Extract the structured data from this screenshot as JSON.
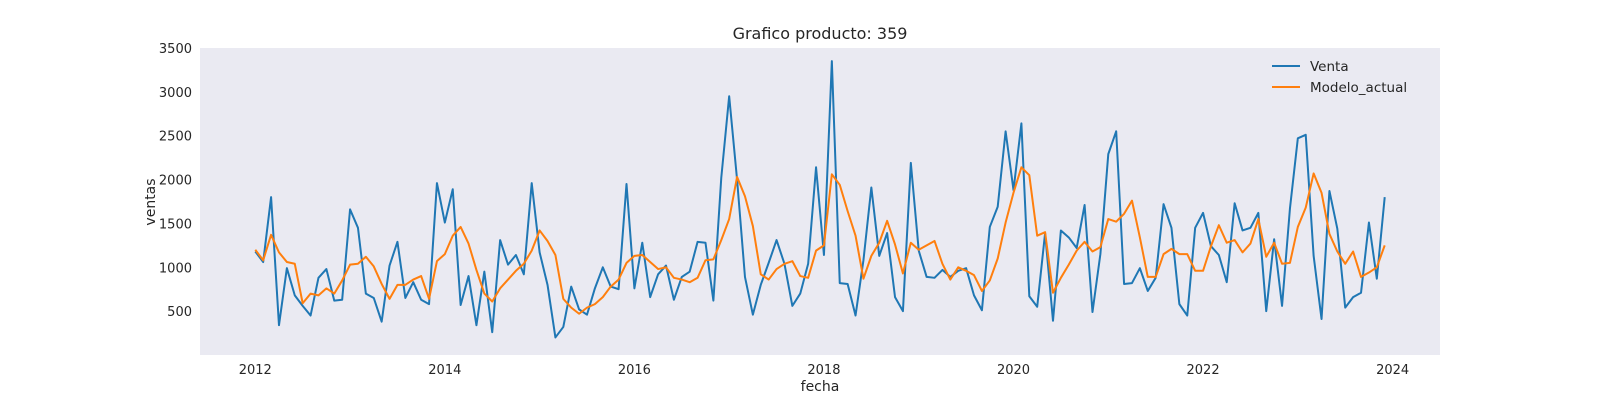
{
  "chart_data": {
    "type": "line",
    "title": "Grafico producto: 359",
    "xlabel": "fecha",
    "ylabel": "ventas",
    "x_start": "2012-01",
    "x_frequency": "monthly",
    "xlim": [
      "2011-06",
      "2024-07"
    ],
    "ylim": [
      0,
      3500
    ],
    "xticks": [
      "2012",
      "2014",
      "2016",
      "2018",
      "2020",
      "2022",
      "2024"
    ],
    "yticks": [
      500,
      1000,
      1500,
      2000,
      2500,
      3000,
      3500
    ],
    "grid": false,
    "legend_position": "top-right",
    "background": "#eaeaf2",
    "series": [
      {
        "name": "Venta",
        "color": "#1f77b4",
        "values": [
          1180,
          1060,
          1800,
          340,
          990,
          680,
          560,
          450,
          880,
          980,
          620,
          630,
          1660,
          1450,
          700,
          650,
          380,
          1020,
          1290,
          650,
          830,
          630,
          580,
          1960,
          1510,
          1890,
          570,
          900,
          340,
          950,
          260,
          1310,
          1030,
          1140,
          920,
          1960,
          1170,
          800,
          200,
          320,
          780,
          520,
          460,
          760,
          1000,
          780,
          750,
          1950,
          760,
          1280,
          660,
          920,
          1020,
          630,
          890,
          950,
          1290,
          1280,
          620,
          2020,
          2950,
          2000,
          890,
          460,
          800,
          1050,
          1310,
          1040,
          560,
          700,
          1040,
          2140,
          1140,
          3350,
          820,
          810,
          450,
          1080,
          1910,
          1130,
          1390,
          660,
          500,
          2190,
          1190,
          890,
          880,
          970,
          890,
          960,
          990,
          680,
          510,
          1460,
          1690,
          2550,
          1880,
          2640,
          670,
          550,
          1390,
          390,
          1420,
          1340,
          1220,
          1710,
          490,
          1150,
          2290,
          2550,
          810,
          820,
          990,
          730,
          880,
          1720,
          1450,
          580,
          450,
          1450,
          1620,
          1240,
          1140,
          830,
          1730,
          1420,
          1450,
          1620,
          500,
          1320,
          560,
          1670,
          2470,
          2510,
          1130,
          410,
          1870,
          1440,
          540,
          660,
          710,
          1510,
          870,
          1800
        ]
      },
      {
        "name": "Modelo_actual",
        "color": "#ff7f0e",
        "values": [
          1200,
          1080,
          1370,
          1170,
          1060,
          1040,
          590,
          700,
          680,
          760,
          700,
          850,
          1030,
          1040,
          1120,
          1010,
          810,
          640,
          800,
          800,
          860,
          900,
          640,
          1070,
          1150,
          1360,
          1460,
          1270,
          970,
          700,
          610,
          760,
          860,
          960,
          1040,
          1190,
          1420,
          1300,
          1140,
          640,
          540,
          470,
          540,
          580,
          660,
          780,
          860,
          1050,
          1130,
          1140,
          1060,
          980,
          1000,
          880,
          860,
          830,
          880,
          1080,
          1090,
          1310,
          1550,
          2030,
          1810,
          1470,
          920,
          860,
          980,
          1040,
          1070,
          900,
          880,
          1190,
          1250,
          2060,
          1940,
          1640,
          1360,
          870,
          1130,
          1280,
          1530,
          1260,
          930,
          1280,
          1200,
          1250,
          1300,
          1040,
          860,
          1000,
          960,
          910,
          730,
          850,
          1100,
          1510,
          1850,
          2140,
          2050,
          1360,
          1400,
          710,
          880,
          1030,
          1190,
          1290,
          1180,
          1230,
          1550,
          1520,
          1610,
          1760,
          1340,
          890,
          890,
          1150,
          1210,
          1150,
          1150,
          960,
          960,
          1240,
          1480,
          1280,
          1310,
          1170,
          1270,
          1550,
          1120,
          1280,
          1040,
          1050,
          1460,
          1680,
          2070,
          1850,
          1380,
          1180,
          1040,
          1180,
          890,
          940,
          1000,
          1250
        ]
      }
    ]
  }
}
